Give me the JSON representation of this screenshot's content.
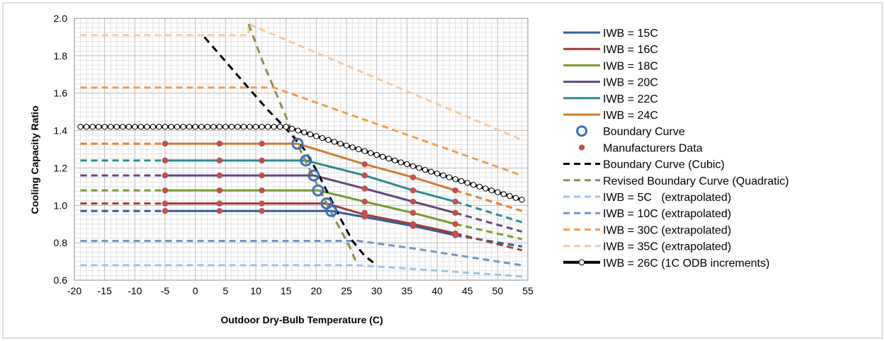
{
  "chart_data": {
    "type": "line",
    "title": "",
    "xlabel": "Outdoor Dry-Bulb Temperature (C)",
    "ylabel": "Cooling Capacity Ratio",
    "xlim": [
      -20,
      55
    ],
    "ylim": [
      0.6,
      2.0
    ],
    "xticks": [
      "-20",
      "-15",
      "-10",
      "-5",
      "0",
      "5",
      "10",
      "15",
      "20",
      "25",
      "30",
      "35",
      "40",
      "45",
      "50",
      "55"
    ],
    "yticks": [
      "0.6",
      "0.8",
      "1.0",
      "1.2",
      "1.4",
      "1.6",
      "1.8",
      "2.0"
    ],
    "grid": true,
    "legend_position": "right",
    "series": [
      {
        "name": "IWB = 15C",
        "color": "#2e5f9e",
        "style": "solid",
        "points": [
          [
            -5,
            0.97
          ],
          [
            22.5,
            0.97
          ],
          [
            36,
            0.89
          ],
          [
            43,
            0.84
          ]
        ]
      },
      {
        "name": "IWB = 16C",
        "color": "#a13b3b",
        "style": "solid",
        "points": [
          [
            -5,
            1.01
          ],
          [
            21.7,
            1.01
          ],
          [
            28,
            0.95
          ],
          [
            36,
            0.9
          ],
          [
            43,
            0.85
          ]
        ]
      },
      {
        "name": "IWB = 18C",
        "color": "#7a9a2e",
        "style": "solid",
        "points": [
          [
            -5,
            1.08
          ],
          [
            20.3,
            1.08
          ],
          [
            28,
            1.02
          ],
          [
            36,
            0.96
          ],
          [
            43,
            0.9
          ]
        ]
      },
      {
        "name": "IWB = 20C",
        "color": "#614a7d",
        "style": "solid",
        "points": [
          [
            -5,
            1.16
          ],
          [
            19.6,
            1.16
          ],
          [
            28,
            1.09
          ],
          [
            36,
            1.02
          ],
          [
            43,
            0.96
          ]
        ]
      },
      {
        "name": "IWB = 22C",
        "color": "#2e8a8f",
        "style": "solid",
        "points": [
          [
            -5,
            1.24
          ],
          [
            18.3,
            1.24
          ],
          [
            28,
            1.16
          ],
          [
            36,
            1.08
          ],
          [
            43,
            1.02
          ]
        ]
      },
      {
        "name": "IWB = 24C",
        "color": "#d07a32",
        "style": "solid",
        "points": [
          [
            -5,
            1.33
          ],
          [
            16.9,
            1.33
          ],
          [
            28,
            1.22
          ],
          [
            36,
            1.15
          ],
          [
            43,
            1.08
          ]
        ]
      },
      {
        "name": "Boundary Curve",
        "color": "#3c72b0",
        "style": "circle-markers",
        "points": [
          [
            16.9,
            1.33
          ],
          [
            18.3,
            1.24
          ],
          [
            19.6,
            1.16
          ],
          [
            20.3,
            1.08
          ],
          [
            21.7,
            1.01
          ],
          [
            22.5,
            0.97
          ]
        ]
      },
      {
        "name": "Manufacturers Data",
        "color": "#c0504d",
        "style": "dot-markers",
        "points": [
          [
            -5,
            0.97
          ],
          [
            4,
            0.97
          ],
          [
            11,
            0.97
          ],
          [
            -5,
            1.01
          ],
          [
            4,
            1.01
          ],
          [
            11,
            1.01
          ],
          [
            -5,
            1.08
          ],
          [
            4,
            1.08
          ],
          [
            11,
            1.08
          ],
          [
            -5,
            1.16
          ],
          [
            4,
            1.16
          ],
          [
            11,
            1.16
          ],
          [
            -5,
            1.24
          ],
          [
            4,
            1.24
          ],
          [
            11,
            1.24
          ],
          [
            -5,
            1.33
          ],
          [
            4,
            1.33
          ],
          [
            11,
            1.33
          ],
          [
            28,
            0.94
          ],
          [
            28,
            0.96
          ],
          [
            28,
            1.02
          ],
          [
            28,
            1.09
          ],
          [
            28,
            1.16
          ],
          [
            28,
            1.22
          ],
          [
            36,
            0.89
          ],
          [
            36,
            0.9
          ],
          [
            36,
            0.96
          ],
          [
            36,
            1.02
          ],
          [
            36,
            1.08
          ],
          [
            36,
            1.15
          ],
          [
            43,
            0.84
          ],
          [
            43,
            0.85
          ],
          [
            43,
            0.9
          ],
          [
            43,
            0.96
          ],
          [
            43,
            1.02
          ],
          [
            43,
            1.08
          ]
        ]
      },
      {
        "name": "Boundary Curve (Cubic)",
        "color": "#000000",
        "style": "dashed",
        "points": [
          [
            1.5,
            1.9
          ],
          [
            5,
            1.77
          ],
          [
            9,
            1.62
          ],
          [
            12,
            1.51
          ],
          [
            15,
            1.41
          ],
          [
            18,
            1.3
          ],
          [
            20,
            1.19
          ],
          [
            22,
            1.06
          ],
          [
            24,
            0.93
          ],
          [
            26,
            0.81
          ],
          [
            28,
            0.73
          ],
          [
            30,
            0.68
          ]
        ]
      },
      {
        "name": "Revised Boundary Curve (Quadratic)",
        "color": "#938953",
        "style": "dashed",
        "points": [
          [
            8.8,
            1.97
          ],
          [
            11,
            1.78
          ],
          [
            14,
            1.55
          ],
          [
            17,
            1.32
          ],
          [
            20,
            1.12
          ],
          [
            23,
            0.93
          ],
          [
            25.5,
            0.78
          ],
          [
            26.8,
            0.68
          ]
        ]
      },
      {
        "name": "IWB = 5C   (extrapolated)",
        "color": "#9dc3e6",
        "style": "dashed",
        "points": [
          [
            -19,
            0.68
          ],
          [
            26.8,
            0.68
          ],
          [
            36,
            0.66
          ],
          [
            54,
            0.62
          ]
        ]
      },
      {
        "name": "IWB = 10C (extrapolated)",
        "color": "#7096c7",
        "style": "dashed",
        "points": [
          [
            -19,
            0.81
          ],
          [
            27,
            0.81
          ],
          [
            36,
            0.77
          ],
          [
            54,
            0.68
          ]
        ]
      },
      {
        "name": "IWB = 30C (extrapolated)",
        "color": "#f39c4b",
        "style": "dashed",
        "points": [
          [
            -19,
            1.63
          ],
          [
            13,
            1.63
          ],
          [
            54,
            1.16
          ]
        ]
      },
      {
        "name": "IWB = 35C (extrapolated)",
        "color": "#f8c9a0",
        "style": "dashed",
        "points": [
          [
            -19,
            1.91
          ],
          [
            8.8,
            1.91
          ],
          [
            8.8,
            1.97
          ],
          [
            54,
            1.35
          ]
        ]
      },
      {
        "name": "IWB = 26C (1C ODB increments)",
        "color": "#000000",
        "style": "solid-open-circles",
        "points": [
          [
            -19,
            1.42
          ],
          [
            15,
            1.42
          ],
          [
            54,
            1.03
          ]
        ]
      }
    ],
    "extrapolated_tails": [
      {
        "series": "IWB = 15C",
        "color": "#2e5f9e",
        "points": [
          [
            -19,
            0.97
          ],
          [
            -5,
            0.97
          ]
        ],
        "tail": [
          [
            43,
            0.84
          ],
          [
            54,
            0.78
          ]
        ]
      },
      {
        "series": "IWB = 16C",
        "color": "#a13b3b",
        "points": [
          [
            -19,
            1.01
          ],
          [
            -5,
            1.01
          ]
        ],
        "tail": [
          [
            43,
            0.85
          ],
          [
            54,
            0.76
          ]
        ]
      },
      {
        "series": "IWB = 18C",
        "color": "#7a9a2e",
        "points": [
          [
            -19,
            1.08
          ],
          [
            -5,
            1.08
          ]
        ],
        "tail": [
          [
            43,
            0.9
          ],
          [
            54,
            0.82
          ]
        ]
      },
      {
        "series": "IWB = 20C",
        "color": "#614a7d",
        "points": [
          [
            -19,
            1.16
          ],
          [
            -5,
            1.16
          ]
        ],
        "tail": [
          [
            43,
            0.96
          ],
          [
            54,
            0.86
          ]
        ]
      },
      {
        "series": "IWB = 22C",
        "color": "#2e8a8f",
        "points": [
          [
            -19,
            1.24
          ],
          [
            -5,
            1.24
          ]
        ],
        "tail": [
          [
            43,
            1.02
          ],
          [
            54,
            0.91
          ]
        ]
      },
      {
        "series": "IWB = 24C",
        "color": "#e8812a",
        "points": [
          [
            -19,
            1.33
          ],
          [
            -5,
            1.33
          ]
        ],
        "tail": [
          [
            43,
            1.08
          ],
          [
            54,
            0.97
          ]
        ]
      }
    ]
  }
}
